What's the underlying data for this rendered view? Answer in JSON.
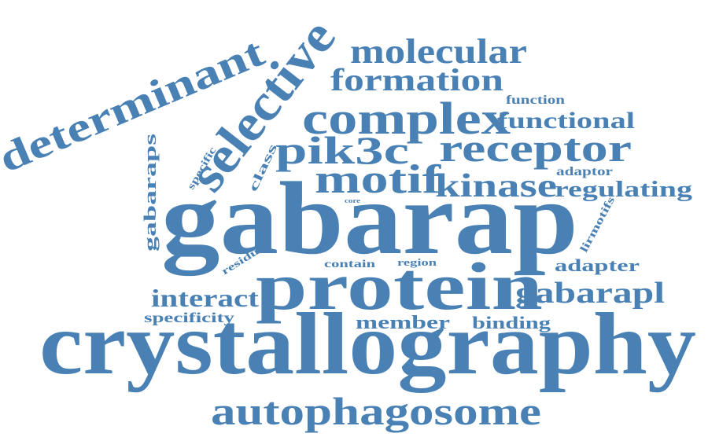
{
  "word_cloud": {
    "color": "#4a81b5",
    "words": [
      {
        "text": "gabarap",
        "weight": 100
      },
      {
        "text": "crystallography",
        "weight": 96
      },
      {
        "text": "protein",
        "weight": 78
      },
      {
        "text": "selective",
        "weight": 60
      },
      {
        "text": "determinant",
        "weight": 50
      },
      {
        "text": "complex",
        "weight": 52
      },
      {
        "text": "receptor",
        "weight": 48
      },
      {
        "text": "motif",
        "weight": 46
      },
      {
        "text": "pik3c",
        "weight": 44
      },
      {
        "text": "autophagosome",
        "weight": 44
      },
      {
        "text": "molecular",
        "weight": 40
      },
      {
        "text": "kinase",
        "weight": 38
      },
      {
        "text": "formation",
        "weight": 36
      },
      {
        "text": "gabarapl",
        "weight": 34
      },
      {
        "text": "interact",
        "weight": 30
      },
      {
        "text": "functional",
        "weight": 28
      },
      {
        "text": "regulating",
        "weight": 28
      },
      {
        "text": "member",
        "weight": 22
      },
      {
        "text": "binding",
        "weight": 20
      },
      {
        "text": "adapter",
        "weight": 20
      },
      {
        "text": "specificity",
        "weight": 18
      },
      {
        "text": "gabaraps",
        "weight": 18
      },
      {
        "text": "class",
        "weight": 14
      },
      {
        "text": "adaptor",
        "weight": 14
      },
      {
        "text": "function",
        "weight": 14
      },
      {
        "text": "lirmotifs",
        "weight": 12
      },
      {
        "text": "specific",
        "weight": 12
      },
      {
        "text": "residue",
        "weight": 12
      },
      {
        "text": "contain",
        "weight": 12
      },
      {
        "text": "region",
        "weight": 12
      },
      {
        "text": "core",
        "weight": 8
      }
    ]
  }
}
